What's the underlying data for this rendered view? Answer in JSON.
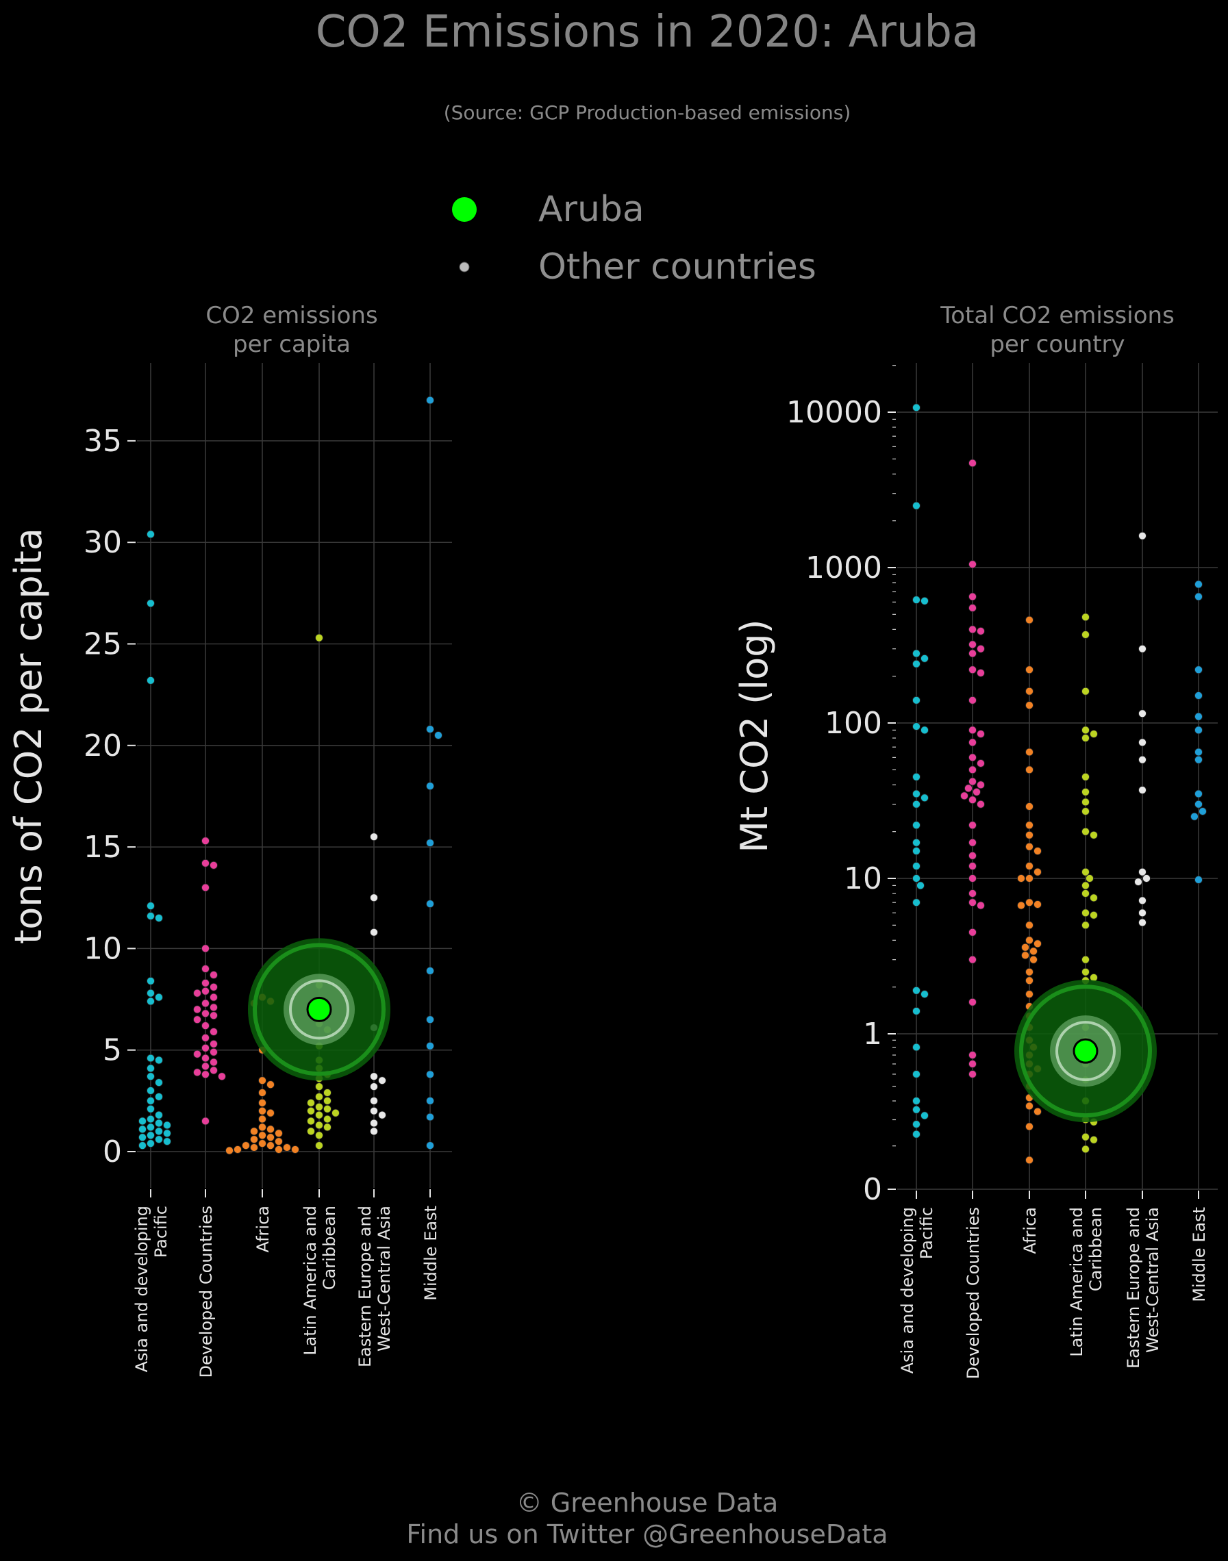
{
  "title": "CO2 Emissions in 2020: Aruba",
  "subtitle": "(Source: GCP Production-based emissions)",
  "legend": {
    "highlight_label": "Aruba",
    "other_label": "Other countries",
    "highlight_color": "#00ff00",
    "other_color": "#bbbbbb"
  },
  "footer": {
    "line1": "© Greenhouse Data",
    "line2": "Find us on Twitter @GreenhouseData"
  },
  "colors": {
    "Asia and developing Pacific": "#17becf",
    "Developed Countries": "#e83e9a",
    "Africa": "#f28224",
    "Latin America and Caribbean": "#bcd422",
    "Eastern Europe and West-Central Asia": "#e8e8e8",
    "Middle East": "#1f9fd8"
  },
  "chart_data": [
    {
      "type": "scatter",
      "title": "CO2 emissions per capita",
      "ylabel": "tons of CO2 per capita",
      "ylim": [
        -1.8,
        38.8
      ],
      "yticks": [
        0,
        5,
        10,
        15,
        20,
        25,
        30,
        35
      ],
      "grid": true,
      "categories": [
        "Asia and developing Pacific",
        "Developed Countries",
        "Africa",
        "Latin America and Caribbean",
        "Eastern Europe and West-Central Asia",
        "Middle East"
      ],
      "highlight": {
        "name": "Aruba",
        "category": "Latin America and Caribbean",
        "value": 7.0
      },
      "series": [
        {
          "category": "Asia and developing Pacific",
          "values": [
            30.4,
            27.0,
            23.2,
            12.1,
            11.6,
            11.5,
            8.4,
            7.8,
            7.6,
            7.4,
            4.6,
            4.5,
            4.1,
            3.7,
            3.4,
            3.0,
            2.7,
            2.5,
            2.1,
            1.8,
            1.6,
            1.5,
            1.4,
            1.3,
            1.2,
            1.1,
            1.0,
            0.9,
            0.8,
            0.7,
            0.6,
            0.5,
            0.4,
            0.3
          ]
        },
        {
          "category": "Developed Countries",
          "values": [
            15.3,
            14.2,
            14.1,
            13.0,
            10.0,
            9.0,
            8.7,
            8.3,
            8.1,
            7.9,
            7.8,
            7.6,
            7.3,
            7.1,
            7.0,
            6.8,
            6.7,
            6.5,
            6.2,
            5.9,
            5.6,
            5.3,
            5.1,
            4.9,
            4.8,
            4.6,
            4.4,
            4.2,
            4.0,
            3.9,
            3.8,
            3.7,
            1.5
          ]
        },
        {
          "category": "Africa",
          "values": [
            7.6,
            7.4,
            7.3,
            5.0,
            3.5,
            3.3,
            2.9,
            2.4,
            2.0,
            1.9,
            1.6,
            1.2,
            1.1,
            1.0,
            0.9,
            0.8,
            0.7,
            0.6,
            0.5,
            0.4,
            0.3,
            0.3,
            0.2,
            0.2,
            0.1,
            0.1,
            0.1,
            0.05
          ]
        },
        {
          "category": "Latin America and Caribbean",
          "values": [
            25.3,
            8.2,
            6.3,
            6.0,
            5.2,
            4.5,
            4.1,
            3.8,
            3.6,
            3.2,
            2.9,
            2.7,
            2.5,
            2.4,
            2.2,
            2.1,
            2.0,
            1.9,
            1.8,
            1.6,
            1.5,
            1.3,
            1.2,
            1.0,
            0.8,
            0.3
          ]
        },
        {
          "category": "Eastern Europe and West-Central Asia",
          "values": [
            15.5,
            12.5,
            10.8,
            6.1,
            3.7,
            3.5,
            3.2,
            2.5,
            2.0,
            1.8,
            1.4,
            1.0
          ]
        },
        {
          "category": "Middle East",
          "values": [
            37.0,
            20.8,
            20.5,
            18.0,
            15.2,
            12.2,
            8.9,
            6.5,
            5.2,
            3.8,
            2.5,
            1.7,
            0.3
          ]
        }
      ]
    },
    {
      "type": "scatter",
      "title": "Total CO2 emissions per country",
      "ylabel": "Mt CO2 (log)",
      "yscale": "symlog",
      "ytick_labels": [
        "0",
        "1",
        "10",
        "100",
        "1000",
        "10000"
      ],
      "grid": true,
      "categories": [
        "Asia and developing Pacific",
        "Developed Countries",
        "Africa",
        "Latin America and Caribbean",
        "Eastern Europe and West-Central Asia",
        "Middle East"
      ],
      "highlight": {
        "name": "Aruba",
        "category": "Latin America and Caribbean",
        "value": 0.75
      },
      "series": [
        {
          "category": "Asia and developing Pacific",
          "values": [
            10700,
            2500,
            620,
            610,
            280,
            260,
            240,
            140,
            95,
            90,
            45,
            35,
            33,
            30,
            22,
            17,
            15,
            12,
            10,
            9,
            7,
            1.9,
            1.8,
            1.4,
            0.8,
            0.5,
            0.3,
            0.25,
            0.22,
            0.18,
            0.14
          ]
        },
        {
          "category": "Developed Countries",
          "values": [
            4700,
            1050,
            650,
            550,
            400,
            390,
            320,
            300,
            280,
            220,
            210,
            140,
            90,
            85,
            75,
            60,
            55,
            50,
            42,
            40,
            38,
            36,
            34,
            32,
            30,
            22,
            17,
            14,
            12,
            10,
            8,
            7,
            6.7,
            4.5,
            3,
            1.6,
            0.7,
            0.6,
            0.5
          ]
        },
        {
          "category": "Africa",
          "values": [
            460,
            220,
            160,
            130,
            65,
            50,
            29,
            22,
            19,
            16,
            15,
            12,
            11,
            10,
            10,
            7,
            6.8,
            6.7,
            5,
            4,
            3.8,
            3.6,
            3.4,
            3.2,
            3,
            2.5,
            2.2,
            1.8,
            1.5,
            1.3,
            1.1,
            0.9,
            0.8,
            0.7,
            0.6,
            0.55,
            0.5,
            0.4,
            0.32,
            0.27,
            0.24,
            0.17,
            0.06
          ]
        },
        {
          "category": "Latin America and Caribbean",
          "values": [
            480,
            370,
            160,
            90,
            85,
            80,
            45,
            36,
            31,
            27,
            20,
            19,
            11,
            10,
            9,
            8,
            7.5,
            6,
            5.8,
            5,
            3,
            2.5,
            2.3,
            2.2,
            1.1,
            0.9,
            0.6,
            0.45,
            0.3,
            0.2,
            0.19,
            0.13,
            0.12,
            0.09
          ]
        },
        {
          "category": "Eastern Europe and West-Central Asia",
          "values": [
            1600,
            300,
            115,
            75,
            58,
            37,
            11,
            10,
            9.5,
            7.2,
            6,
            5.2
          ]
        },
        {
          "category": "Middle East",
          "values": [
            780,
            650,
            220,
            150,
            110,
            90,
            65,
            58,
            35,
            30,
            27,
            25,
            9.8
          ]
        }
      ]
    }
  ]
}
